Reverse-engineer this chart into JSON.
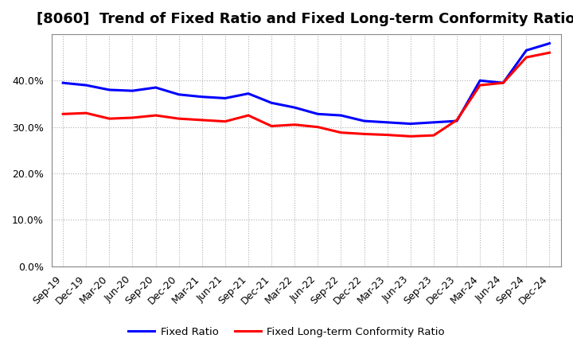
{
  "title": "[8060]  Trend of Fixed Ratio and Fixed Long-term Conformity Ratio",
  "xlabels": [
    "Sep-19",
    "Dec-19",
    "Mar-20",
    "Jun-20",
    "Sep-20",
    "Dec-20",
    "Mar-21",
    "Jun-21",
    "Sep-21",
    "Dec-21",
    "Mar-22",
    "Jun-22",
    "Sep-22",
    "Dec-22",
    "Mar-23",
    "Jun-23",
    "Sep-23",
    "Dec-23",
    "Mar-24",
    "Jun-24",
    "Sep-24",
    "Dec-24"
  ],
  "fixed_ratio": [
    39.5,
    39.0,
    38.0,
    37.8,
    38.5,
    37.0,
    36.5,
    36.2,
    37.2,
    35.2,
    34.2,
    32.8,
    32.5,
    31.3,
    31.0,
    30.7,
    31.0,
    31.3,
    40.0,
    39.5,
    46.5,
    48.0
  ],
  "fixed_lt_conformity": [
    32.8,
    33.0,
    31.8,
    32.0,
    32.5,
    31.8,
    31.5,
    31.2,
    32.5,
    30.2,
    30.5,
    30.0,
    28.8,
    28.5,
    28.3,
    28.0,
    28.2,
    31.5,
    39.0,
    39.5,
    45.0,
    46.0
  ],
  "fixed_ratio_color": "#0000ff",
  "fixed_lt_color": "#ff0000",
  "ylim": [
    0,
    50
  ],
  "yticks": [
    0,
    10,
    20,
    30,
    40
  ],
  "background_color": "#ffffff",
  "plot_bg_color": "#ffffff",
  "grid_color": "#b0b0b0",
  "legend_fixed_ratio": "Fixed Ratio",
  "legend_fixed_lt": "Fixed Long-term Conformity Ratio",
  "title_fontsize": 13,
  "tick_fontsize": 9,
  "line_width": 2.2
}
